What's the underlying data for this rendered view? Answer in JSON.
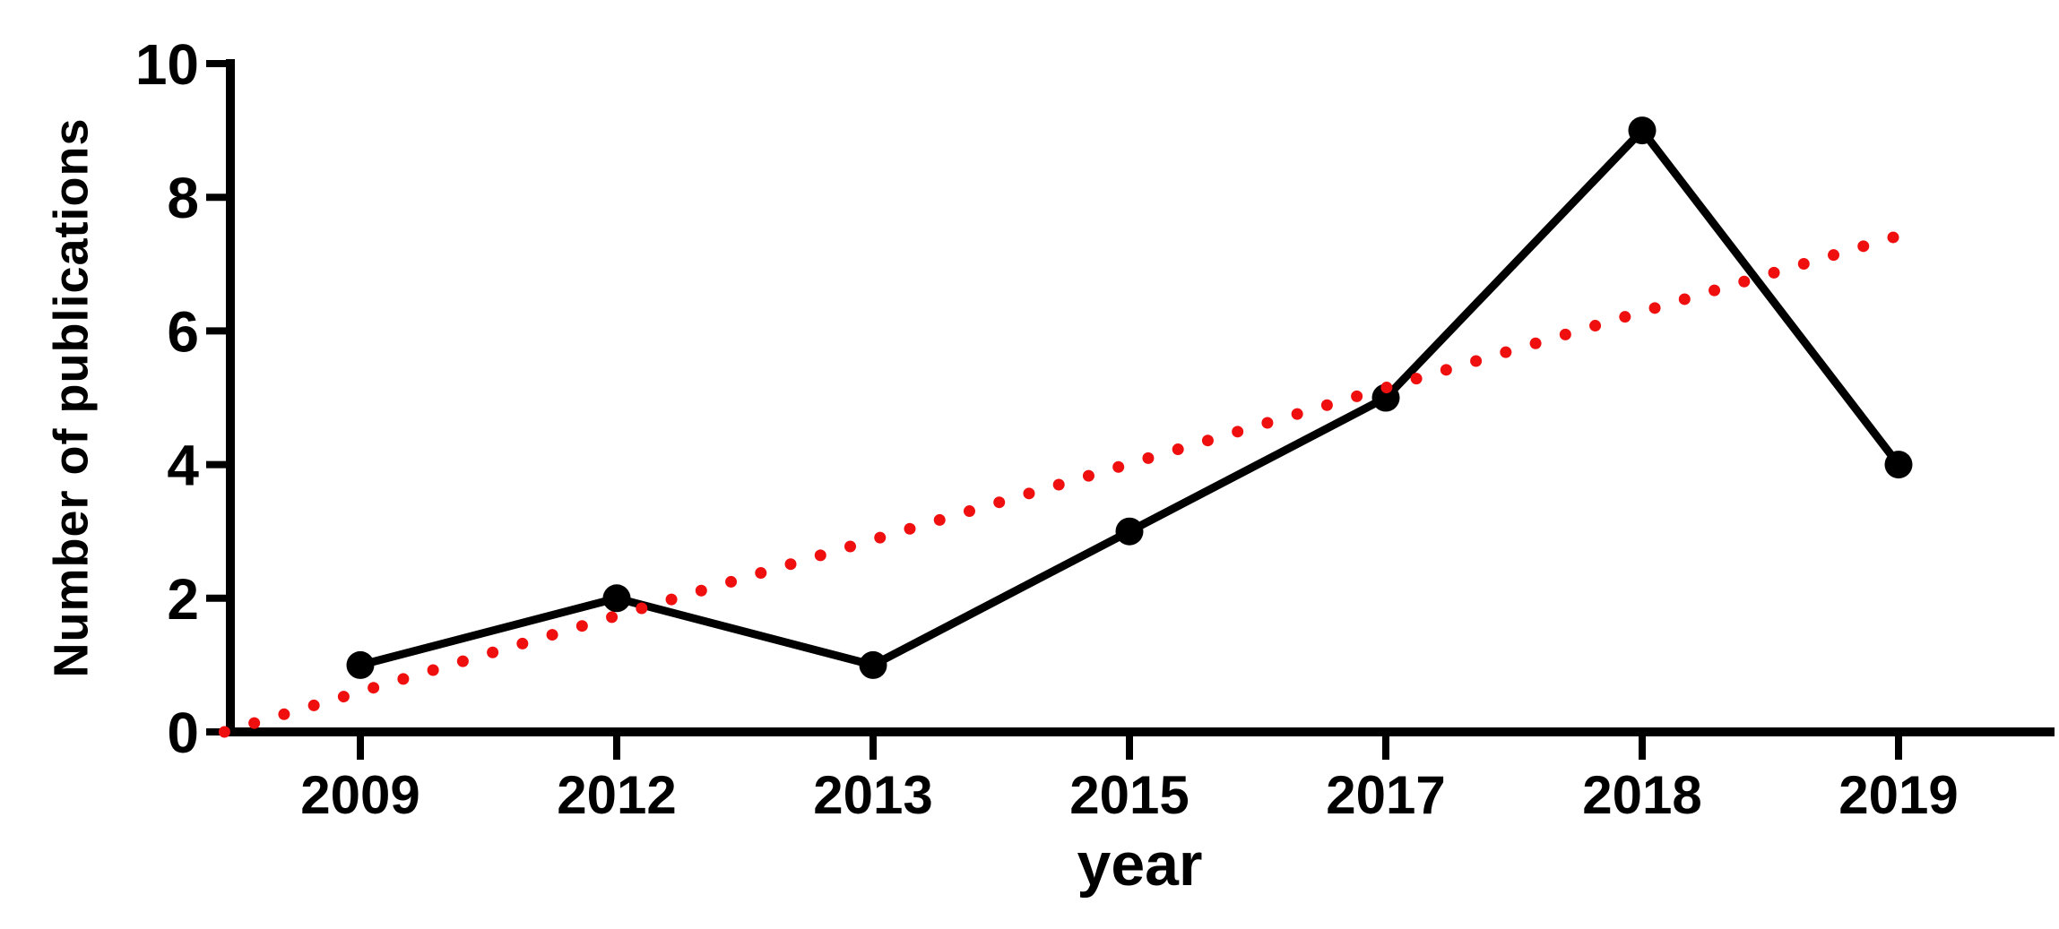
{
  "chart_data": {
    "type": "line",
    "title": "",
    "xlabel": "year",
    "ylabel": "Number of publications",
    "categories": [
      "2009",
      "2012",
      "2013",
      "2015",
      "2017",
      "2018",
      "2019"
    ],
    "yticks": [
      0,
      2,
      4,
      6,
      8,
      10
    ],
    "ylim": [
      0,
      10
    ],
    "grid": false,
    "legend": false,
    "series": [
      {
        "name": "publications-per-year",
        "type": "line-with-markers",
        "color": "#000000",
        "values": [
          1,
          2,
          1,
          3,
          5,
          9,
          4
        ]
      },
      {
        "name": "linear-trend",
        "type": "dotted-trend-line",
        "color": "#f00f0f",
        "start": {
          "x_index": -0.53,
          "value": 0
        },
        "end": {
          "x_index": 6.0,
          "value": 7.4
        }
      }
    ]
  },
  "colors": {
    "series_line": "#000000",
    "trend_line": "#f00f0f",
    "axis": "#000000",
    "background": "#ffffff"
  }
}
